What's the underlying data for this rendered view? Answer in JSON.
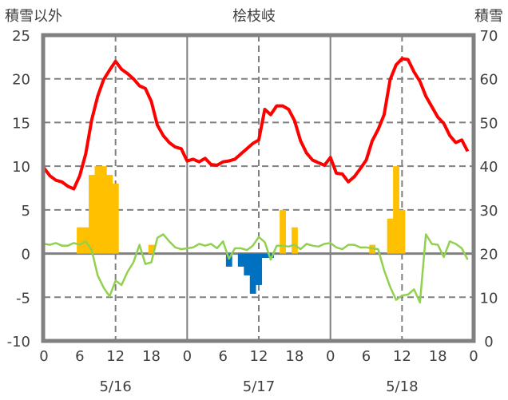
{
  "chart_data": {
    "type": "line",
    "title": "桧枝岐",
    "ylabel_left": "積雪以外",
    "ylabel_right": "積雪",
    "ylim_left": [
      -10,
      25
    ],
    "yticks_left": [
      -10,
      -5,
      0,
      5,
      10,
      15,
      20,
      25
    ],
    "ylim_right": [
      0,
      70
    ],
    "yticks_right": [
      0,
      10,
      20,
      30,
      40,
      50,
      60,
      70
    ],
    "xlim_hours": [
      0,
      72
    ],
    "xtick_labels": [
      "0",
      "6",
      "12",
      "18",
      "0",
      "6",
      "12",
      "18",
      "0",
      "6",
      "12",
      "18",
      "0"
    ],
    "date_labels": [
      "5/16",
      "5/17",
      "5/18"
    ],
    "grid": true,
    "colors": {
      "temperature": "#ff0000",
      "green": "#92d050",
      "snow_up": "#ffc000",
      "snow_down": "#0070c0",
      "axis": "#808080"
    },
    "series": [
      {
        "name": "red",
        "color": "#ff0000",
        "values": [
          9.8,
          8.9,
          8.4,
          8.2,
          7.7,
          7.4,
          8.9,
          11.4,
          15.3,
          18.0,
          19.9,
          21.0,
          22.0,
          21.1,
          20.6,
          20.0,
          19.2,
          18.9,
          17.4,
          14.7,
          13.5,
          12.7,
          12.2,
          12.0,
          10.6,
          10.8,
          10.5,
          10.9,
          10.2,
          10.1,
          10.5,
          10.6,
          10.8,
          11.4,
          12.0,
          12.6,
          13.0,
          16.5,
          15.9,
          16.9,
          16.9,
          16.5,
          15.2,
          12.9,
          11.5,
          10.7,
          10.4,
          10.1,
          11.0,
          9.2,
          9.1,
          8.2,
          8.8,
          9.7,
          10.7,
          12.9,
          14.2,
          15.9,
          19.9,
          21.6,
          22.3,
          22.2,
          20.8,
          19.7,
          18.0,
          16.8,
          15.6,
          14.9,
          13.5,
          12.7,
          13.0,
          11.7
        ]
      },
      {
        "name": "green",
        "color": "#92d050",
        "values": [
          1.1,
          1.0,
          1.2,
          0.9,
          0.9,
          1.2,
          1.0,
          1.4,
          0.4,
          -2.5,
          -3.9,
          -4.9,
          -3.1,
          -3.6,
          -2.1,
          -1.0,
          1.0,
          -1.2,
          -1.0,
          1.8,
          2.2,
          1.4,
          0.7,
          0.5,
          0.6,
          0.7,
          1.1,
          0.9,
          1.1,
          0.6,
          1.4,
          -0.6,
          0.6,
          0.6,
          0.4,
          0.9,
          1.9,
          1.3,
          -0.7,
          0.9,
          0.9,
          0.8,
          1.0,
          0.5,
          1.1,
          0.9,
          0.8,
          1.1,
          1.2,
          0.7,
          0.5,
          1.0,
          1.0,
          0.7,
          0.7,
          0.6,
          0.5,
          -1.9,
          -3.8,
          -5.3,
          -4.8,
          -4.7,
          -4.1,
          -5.6,
          2.2,
          1.1,
          1.0,
          -0.4,
          1.4,
          1.1,
          0.6,
          -0.7
        ]
      }
    ],
    "bars": [
      {
        "hour": 6,
        "value": 3
      },
      {
        "hour": 7,
        "value": 3
      },
      {
        "hour": 8,
        "value": 9
      },
      {
        "hour": 9,
        "value": 10
      },
      {
        "hour": 10,
        "value": 10
      },
      {
        "hour": 11,
        "value": 9
      },
      {
        "hour": 12,
        "value": 8
      },
      {
        "hour": 18,
        "value": 1
      },
      {
        "hour": 31,
        "value": -1.5
      },
      {
        "hour": 33,
        "value": -1.5
      },
      {
        "hour": 34,
        "value": -2.5
      },
      {
        "hour": 35,
        "value": -4.6
      },
      {
        "hour": 36,
        "value": -3.6
      },
      {
        "hour": 37,
        "value": -0.5
      },
      {
        "hour": 38,
        "value": -0.5
      },
      {
        "hour": 40,
        "value": 5
      },
      {
        "hour": 42,
        "value": 3
      },
      {
        "hour": 55,
        "value": 1
      },
      {
        "hour": 58,
        "value": 4
      },
      {
        "hour": 59,
        "value": 10
      },
      {
        "hour": 60,
        "value": 5
      }
    ]
  }
}
